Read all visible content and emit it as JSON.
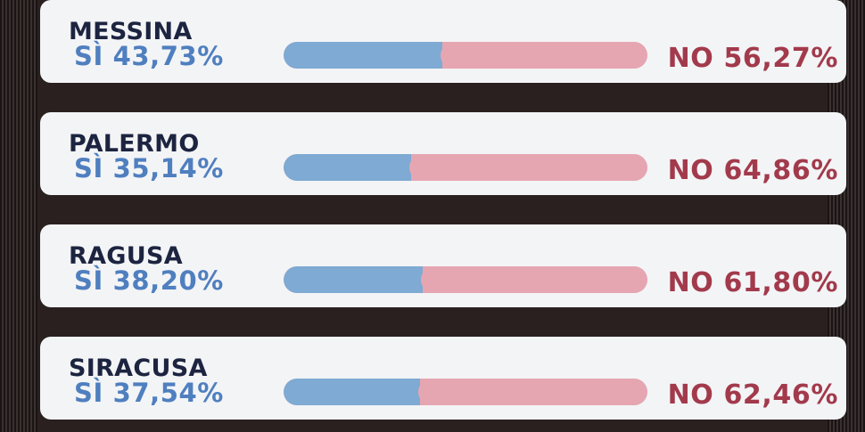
{
  "results": [
    {
      "province": "MESSINA",
      "yes_label": "SÌ 43,73%",
      "no_label": "NO 56,27%",
      "yes_fraction": 0.4373
    },
    {
      "province": "PALERMO",
      "yes_label": "SÌ 35,14%",
      "no_label": "NO 64,86%",
      "yes_fraction": 0.3514
    },
    {
      "province": "RAGUSA",
      "yes_label": "SÌ 38,20%",
      "no_label": "NO 61,80%",
      "yes_fraction": 0.382
    },
    {
      "province": "SIRACUSA",
      "yes_label": "SÌ 37,54%",
      "no_label": "NO 62,46%",
      "yes_fraction": 0.3754
    }
  ],
  "colors": {
    "yes": "#4f7fbf",
    "yes_bar": "#7eaad4",
    "no": "#a23a4c",
    "no_bar": "#e5a6b2",
    "province": "#1c2440"
  }
}
